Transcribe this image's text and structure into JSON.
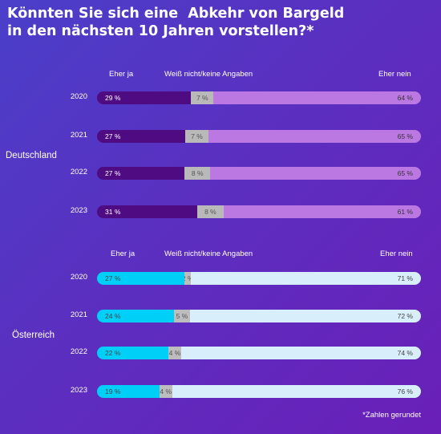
{
  "title": "Könnten Sie sich eine  Abkehr von Bargeld\nin den nächsten 10 Jahren vorstellen?*",
  "footnote": "*Zahlen gerundet",
  "colors": {
    "de_yes": "#4e0b82",
    "de_neutral": "#b9b9b9",
    "de_no": "#bb78e3",
    "at_yes": "#00d0f8",
    "at_neutral": "#bdbdbd",
    "at_no": "#d8eefa",
    "de_yes_text": "#ffffff",
    "de_neutral_text": "#555555",
    "de_no_text": "#333333",
    "at_yes_text": "#444444",
    "at_neutral_text": "#555555",
    "at_no_text": "#444444"
  },
  "chart_data": [
    {
      "type": "bar",
      "stacked": true,
      "orientation": "horizontal",
      "group": "Deutschland",
      "categories": [
        "2020",
        "2021",
        "2022",
        "2023"
      ],
      "series": [
        {
          "name": "Eher ja",
          "values": [
            29,
            27,
            27,
            31
          ]
        },
        {
          "name": "Weiß nicht/keine Angaben",
          "values": [
            7,
            7,
            8,
            8
          ]
        },
        {
          "name": "Eher nein",
          "values": [
            64,
            65,
            65,
            61
          ]
        }
      ],
      "unit": "%"
    },
    {
      "type": "bar",
      "stacked": true,
      "orientation": "horizontal",
      "group": "Österreich",
      "categories": [
        "2020",
        "2021",
        "2022",
        "2023"
      ],
      "series": [
        {
          "name": "Eher ja",
          "values": [
            27,
            24,
            22,
            19
          ]
        },
        {
          "name": "Weiß nicht/keine Angaben",
          "values": [
            2,
            5,
            4,
            4
          ]
        },
        {
          "name": "Eher nein",
          "values": [
            71,
            72,
            74,
            76
          ]
        }
      ],
      "unit": "%"
    }
  ]
}
